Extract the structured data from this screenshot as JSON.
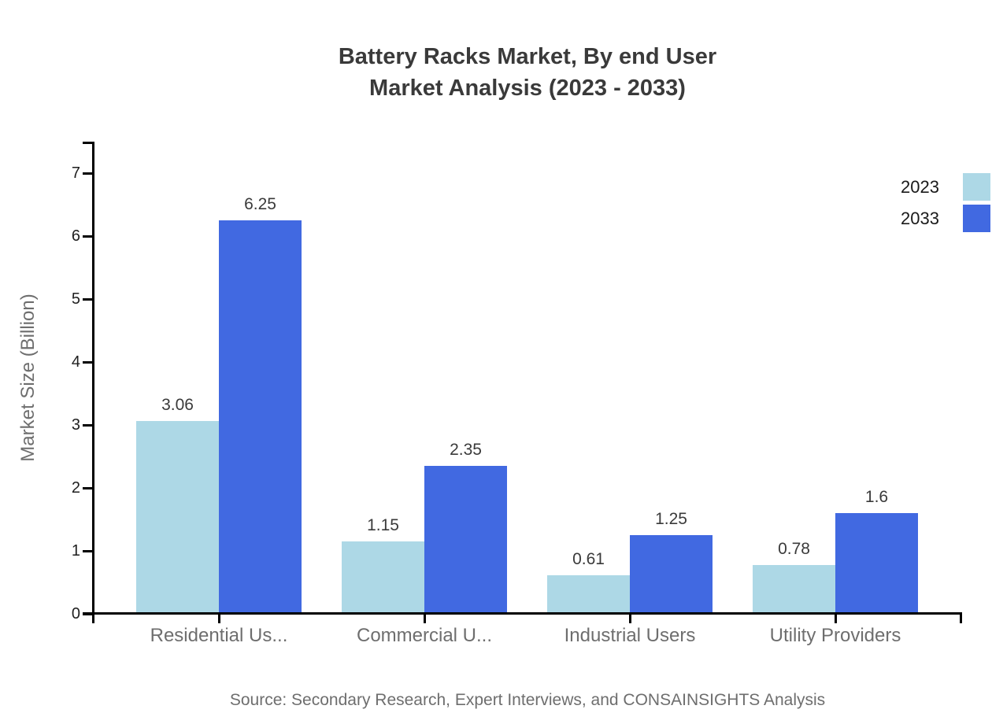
{
  "chart": {
    "title_line1": "Battery Racks Market, By end User",
    "title_line2": "Market Analysis (2023 - 2033)",
    "source_note": "Source: Secondary Research, Expert Interviews, and CONSAINSIGHTS Analysis"
  },
  "colors": {
    "series_2023": "#ADD8E6",
    "series_2033": "#4169E1",
    "axis_line": "#000000",
    "title_text": "#3A3A3A",
    "muted_text": "#6E6E6E",
    "tick_label_text": "#1F1F1F"
  },
  "chart_data": {
    "type": "bar",
    "title": "Battery Racks Market, By end User Market Analysis (2023 - 2033)",
    "categories": [
      "Residential Us...",
      "Commercial U...",
      "Industrial Users",
      "Utility Providers"
    ],
    "series": [
      {
        "name": "2023",
        "color": "#ADD8E6",
        "values": [
          3.06,
          1.15,
          0.61,
          0.78
        ]
      },
      {
        "name": "2033",
        "color": "#4169E1",
        "values": [
          6.25,
          2.35,
          1.25,
          1.6
        ]
      }
    ],
    "value_labels": {
      "2023": [
        "3.06",
        "1.15",
        "0.61",
        "0.78"
      ],
      "2033": [
        "6.25",
        "2.35",
        "1.25",
        "1.6"
      ]
    },
    "xlabel": "",
    "ylabel": "Market Size (Billion)",
    "ylim": [
      0,
      7.5
    ],
    "yticks": [
      0,
      1,
      2,
      3,
      4,
      5,
      6,
      7
    ],
    "grid": false,
    "legend_position": "top-right"
  }
}
